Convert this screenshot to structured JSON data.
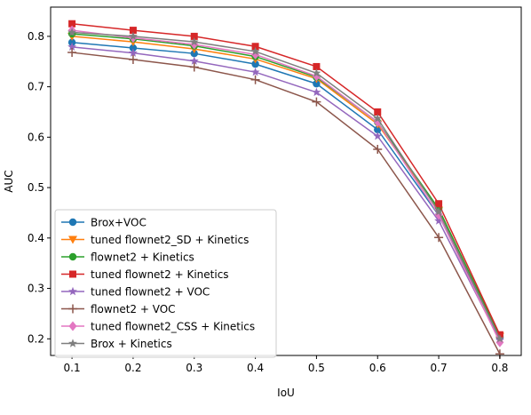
{
  "chart_data": {
    "type": "line",
    "title": "",
    "xlabel": "IoU",
    "ylabel": "AUC",
    "x": [
      0.1,
      0.2,
      0.3,
      0.4,
      0.5,
      0.6,
      0.7,
      0.8
    ],
    "x_tick_labels": [
      "0.1",
      "0.2",
      "0.3",
      "0.4",
      "0.5",
      "0.6",
      "0.7",
      "0.8"
    ],
    "y_tick_labels": [
      "0.2",
      "0.3",
      "0.4",
      "0.5",
      "0.6",
      "0.7",
      "0.8"
    ],
    "y_ticks": [
      0.2,
      0.3,
      0.4,
      0.5,
      0.6,
      0.7,
      0.8
    ],
    "xlim": [
      0.065,
      0.835
    ],
    "ylim": [
      0.167,
      0.858
    ],
    "grid": false,
    "legend_position": "lower-left",
    "series": [
      {
        "name": "Brox+VOC",
        "color": "#1f77b4",
        "marker": "circle",
        "values": [
          0.788,
          0.777,
          0.766,
          0.745,
          0.706,
          0.615,
          0.445,
          0.203
        ]
      },
      {
        "name": "tuned flownet2_SD + Kinetics",
        "color": "#ff7f0e",
        "marker": "triangle-down",
        "values": [
          0.8,
          0.789,
          0.775,
          0.755,
          0.716,
          0.626,
          0.455,
          0.205
        ]
      },
      {
        "name": "flownet2 + Kinetics",
        "color": "#2ca02c",
        "marker": "circle",
        "values": [
          0.805,
          0.795,
          0.781,
          0.76,
          0.719,
          0.63,
          0.458,
          0.205
        ]
      },
      {
        "name": "tuned flownet2 + Kinetics",
        "color": "#d62728",
        "marker": "square",
        "values": [
          0.825,
          0.812,
          0.8,
          0.78,
          0.74,
          0.65,
          0.468,
          0.208
        ]
      },
      {
        "name": "tuned flownet2 + VOC",
        "color": "#9467bd",
        "marker": "star",
        "values": [
          0.779,
          0.767,
          0.751,
          0.729,
          0.689,
          0.602,
          0.434,
          0.197
        ]
      },
      {
        "name": "flownet2 + VOC",
        "color": "#8c564b",
        "marker": "plus",
        "values": [
          0.768,
          0.754,
          0.739,
          0.714,
          0.67,
          0.576,
          0.401,
          0.17
        ]
      },
      {
        "name": "tuned flownet2_CSS + Kinetics",
        "color": "#e377c2",
        "marker": "diamond",
        "values": [
          0.812,
          0.797,
          0.784,
          0.764,
          0.721,
          0.63,
          0.446,
          0.193
        ]
      },
      {
        "name": "Brox + Kinetics",
        "color": "#7f7f7f",
        "marker": "star",
        "values": [
          0.808,
          0.8,
          0.789,
          0.77,
          0.727,
          0.637,
          0.452,
          0.2
        ]
      }
    ]
  }
}
